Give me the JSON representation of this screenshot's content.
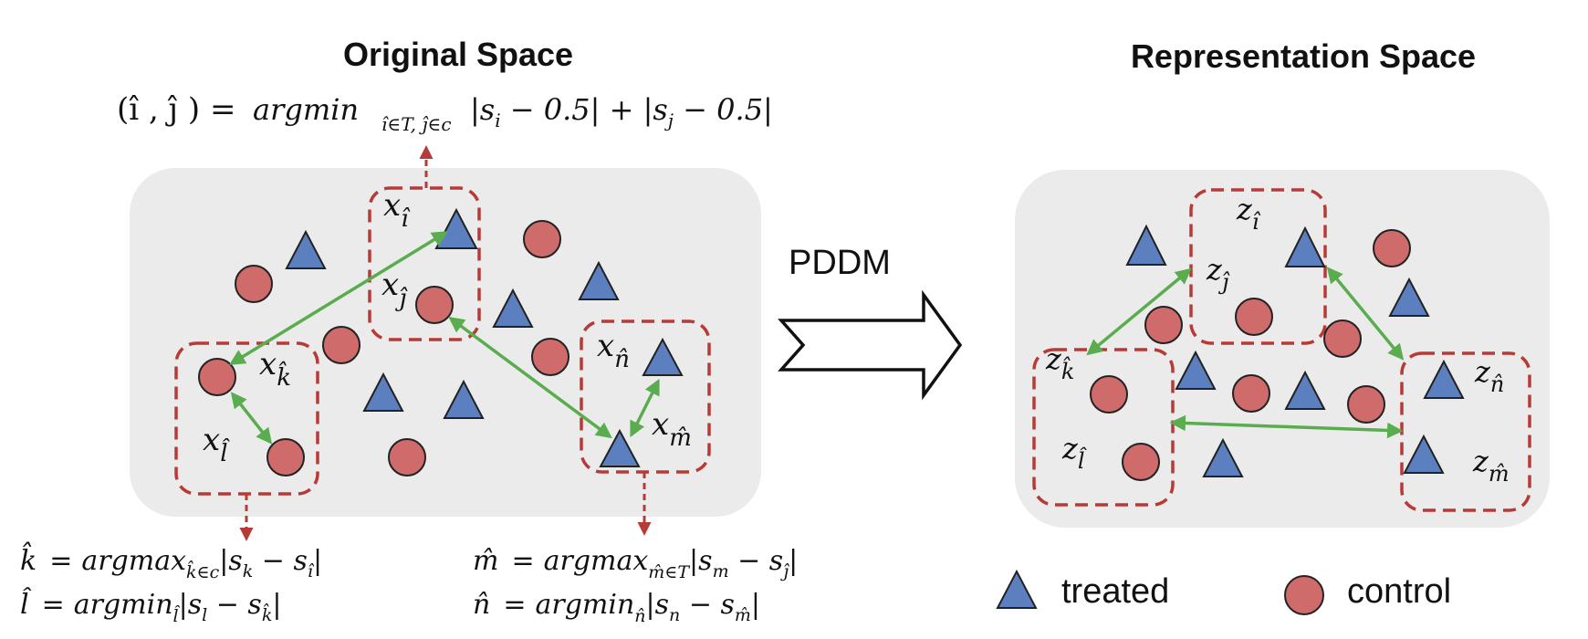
{
  "titles": {
    "left": "Original Space",
    "right": "Representation Space"
  },
  "arrow_label": "PDDM",
  "formulas": {
    "top": {
      "lhs": "(î , ĵ ) =",
      "func": "argmin",
      "sub": "î∈T, ĵ∈c",
      "rhs": "|s",
      "rhs_i": "i",
      "rhs_mid": " − 0.5| + |s",
      "rhs_j": "j",
      "rhs_end": " − 0.5|"
    },
    "k": {
      "lhs": "k̂",
      "eq": "=",
      "func": "argmax",
      "sub": "k̂∈c",
      "body": "|s",
      "b1": "k",
      "b2": " − s",
      "b3": "î",
      "b4": "|"
    },
    "l": {
      "lhs": "l̂",
      "eq": "=",
      "func": "argmin",
      "sub": "l̂",
      "body": "|s",
      "b1": "l",
      "b2": " − s",
      "b3": "k̂",
      "b4": "|"
    },
    "m": {
      "lhs": "m̂",
      "eq": "=",
      "func": "argmax",
      "sub": "m̂∈T",
      "body": "|s",
      "b1": "m",
      "b2": " − s",
      "b3": "ĵ",
      "b4": "|"
    },
    "n": {
      "lhs": "n̂",
      "eq": "=",
      "func": "argmin",
      "sub": "n̂",
      "body": "|s",
      "b1": "n",
      "b2": " − s",
      "b3": "m̂",
      "b4": "|"
    }
  },
  "left_labels": {
    "xi": {
      "base": "x",
      "sub": "î"
    },
    "xj": {
      "base": "x",
      "sub": "ĵ"
    },
    "xk": {
      "base": "x",
      "sub": "k̂"
    },
    "xl": {
      "base": "x",
      "sub": "l̂"
    },
    "xn": {
      "base": "x",
      "sub": "n̂"
    },
    "xm": {
      "base": "x",
      "sub": "m̂"
    }
  },
  "right_labels": {
    "zi": {
      "base": "z",
      "sub": "î"
    },
    "zj": {
      "base": "z",
      "sub": "ĵ"
    },
    "zk": {
      "base": "z",
      "sub": "k̂"
    },
    "zl": {
      "base": "z",
      "sub": "l̂"
    },
    "zn": {
      "base": "z",
      "sub": "n̂"
    },
    "zm": {
      "base": "z",
      "sub": "m̂"
    }
  },
  "legend": {
    "treated": "treated",
    "control": "control"
  },
  "colors": {
    "panel": "#ebebeb",
    "treated": "#5b7fbf",
    "control": "#cf6b6b",
    "dashed_box": "#b83a36",
    "pair_arrow": "#5aad4e",
    "stroke": "#222222"
  }
}
